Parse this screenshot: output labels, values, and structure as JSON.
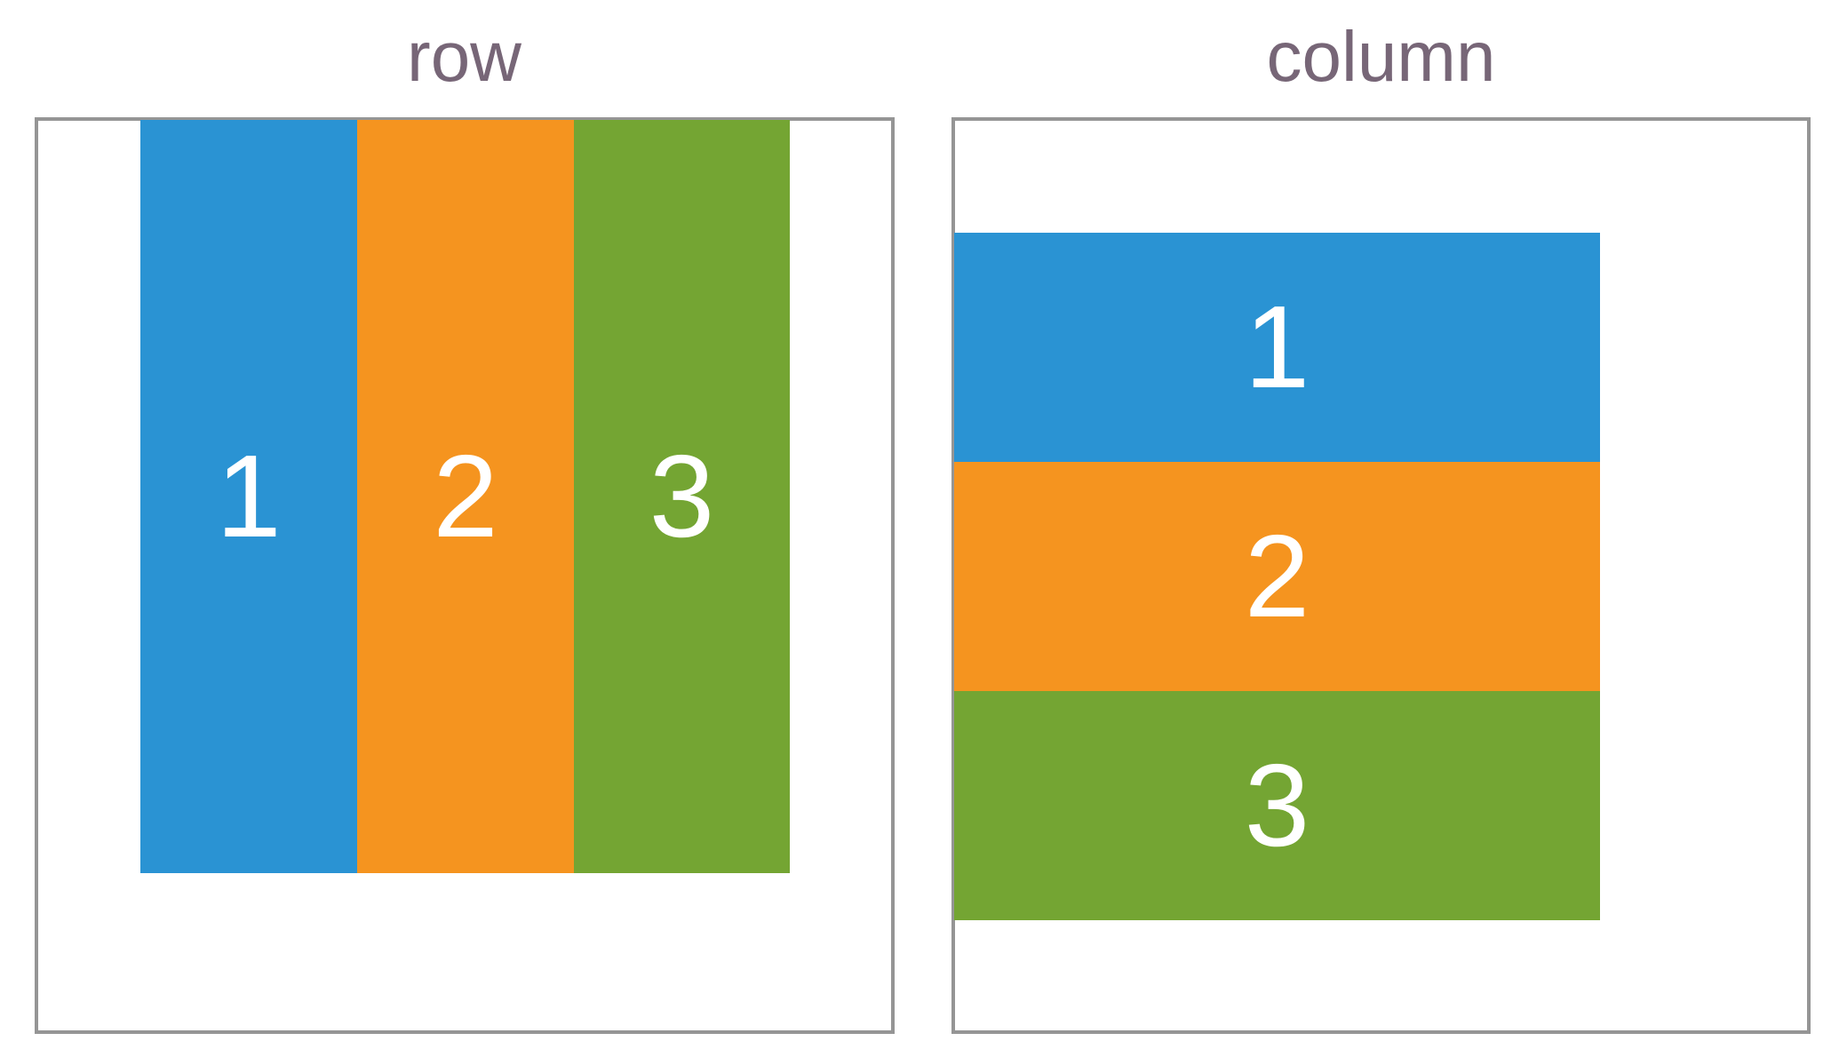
{
  "panels": {
    "row": {
      "title": "row",
      "items": [
        {
          "label": "1"
        },
        {
          "label": "2"
        },
        {
          "label": "3"
        }
      ]
    },
    "column": {
      "title": "column",
      "items": [
        {
          "label": "1"
        },
        {
          "label": "2"
        },
        {
          "label": "3"
        }
      ]
    }
  },
  "colors": {
    "title": "#776677",
    "border": "#959595",
    "item_1": "#2a93d3",
    "item_2": "#f5941f",
    "item_3": "#74a533",
    "item_text": "#ffffff"
  }
}
